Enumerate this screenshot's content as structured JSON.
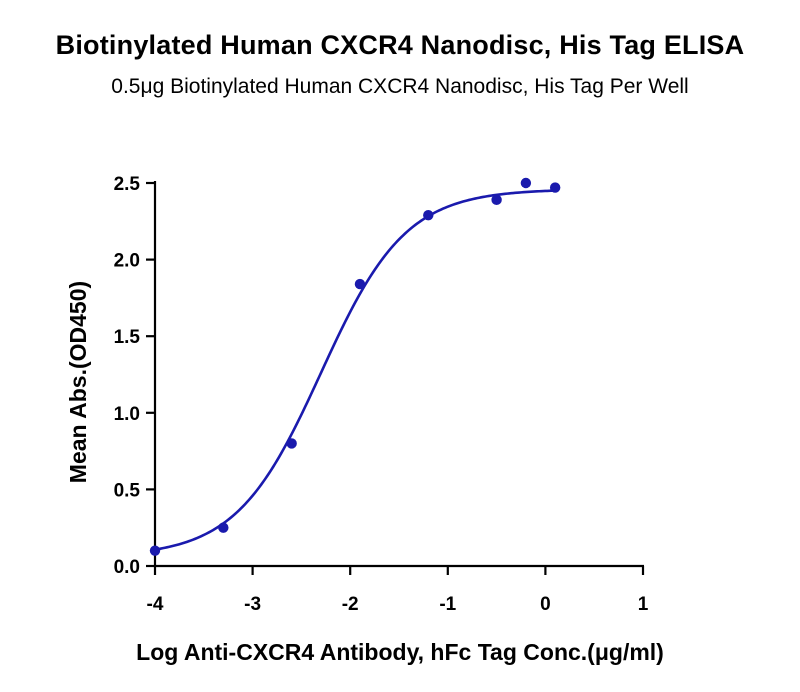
{
  "chart_data": {
    "type": "scatter",
    "title": "Biotinylated Human CXCR4 Nanodisc, His Tag ELISA",
    "subtitle": "0.5μg Biotinylated Human CXCR4 Nanodisc, His Tag Per Well",
    "xlabel": "Log Anti-CXCR4 Antibody, hFc Tag Conc.(μg/ml)",
    "ylabel": "Mean Abs.(OD450)",
    "xlim": [
      -4,
      1
    ],
    "ylim": [
      0,
      2.5
    ],
    "xticks": [
      -4,
      -3,
      -2,
      -1,
      0,
      1
    ],
    "yticks": [
      0.0,
      0.5,
      1.0,
      1.5,
      2.0,
      2.5
    ],
    "xtick_labels": [
      "-4",
      "-3",
      "-2",
      "-1",
      "0",
      "1"
    ],
    "ytick_labels": [
      "0.0",
      "0.5",
      "1.0",
      "1.5",
      "2.0",
      "2.5"
    ],
    "grid": false,
    "series": [
      {
        "points": [
          {
            "x": -4.0,
            "y": 0.1
          },
          {
            "x": -3.3,
            "y": 0.25
          },
          {
            "x": -2.6,
            "y": 0.8
          },
          {
            "x": -1.9,
            "y": 1.84
          },
          {
            "x": -1.2,
            "y": 2.29
          },
          {
            "x": -0.5,
            "y": 2.39
          },
          {
            "x": -0.2,
            "y": 2.5
          },
          {
            "x": 0.1,
            "y": 2.47
          }
        ],
        "fit": {
          "model": "4PL",
          "bottom": 0.06,
          "top": 2.46,
          "logEC50": -2.3,
          "hill": 1.0
        },
        "color": "#1a1aad"
      }
    ]
  }
}
